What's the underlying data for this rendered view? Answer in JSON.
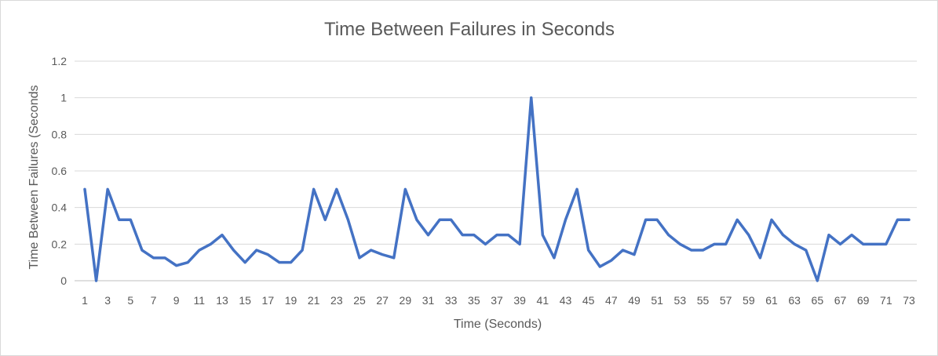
{
  "chart_data": {
    "type": "line",
    "title": "Time Between Failures in Seconds",
    "xlabel": "Time (Seconds)",
    "ylabel": "Time Between Failures (Seconds",
    "ylim": [
      0,
      1.2
    ],
    "yticks": [
      "0",
      "0.2",
      "0.4",
      "0.6",
      "0.8",
      "1",
      "1.2"
    ],
    "xticks": [
      "1",
      "3",
      "5",
      "7",
      "9",
      "11",
      "13",
      "15",
      "17",
      "19",
      "21",
      "23",
      "25",
      "27",
      "29",
      "31",
      "33",
      "35",
      "37",
      "39",
      "41",
      "43",
      "45",
      "47",
      "49",
      "51",
      "53",
      "55",
      "57",
      "59",
      "61",
      "63",
      "65",
      "67",
      "69",
      "71",
      "73"
    ],
    "x": [
      1,
      2,
      3,
      4,
      5,
      6,
      7,
      8,
      9,
      10,
      11,
      12,
      13,
      14,
      15,
      16,
      17,
      18,
      19,
      20,
      21,
      22,
      23,
      24,
      25,
      26,
      27,
      28,
      29,
      30,
      31,
      32,
      33,
      34,
      35,
      36,
      37,
      38,
      39,
      40,
      41,
      42,
      43,
      44,
      45,
      46,
      47,
      48,
      49,
      50,
      51,
      52,
      53,
      54,
      55,
      56,
      57,
      58,
      59,
      60,
      61,
      62,
      63,
      64,
      65,
      66,
      67,
      68,
      69,
      70,
      71,
      72,
      73
    ],
    "grid": true,
    "legend": "none",
    "color": "#4472c4",
    "series": [
      {
        "values": [
          0.5,
          0,
          0.5,
          0.333,
          0.333,
          0.167,
          0.125,
          0.125,
          0.083,
          0.1,
          0.167,
          0.2,
          0.25,
          0.167,
          0.1,
          0.167,
          0.143,
          0.1,
          0.1,
          0.167,
          0.5,
          0.333,
          0.5,
          0.333,
          0.125,
          0.167,
          0.143,
          0.125,
          0.5,
          0.333,
          0.25,
          0.333,
          0.333,
          0.25,
          0.25,
          0.2,
          0.25,
          0.25,
          0.2,
          1,
          0.25,
          0.125,
          0.333,
          0.5,
          0.167,
          0.077,
          0.111,
          0.167,
          0.143,
          0.333,
          0.333,
          0.25,
          0.2,
          0.167,
          0.167,
          0.2,
          0.2,
          0.333,
          0.25,
          0.125,
          0.333,
          0.25,
          0.2,
          0.167,
          0,
          0.25,
          0.2,
          0.25,
          0.2,
          0.2,
          0.2,
          0.333,
          0.333
        ]
      }
    ]
  }
}
